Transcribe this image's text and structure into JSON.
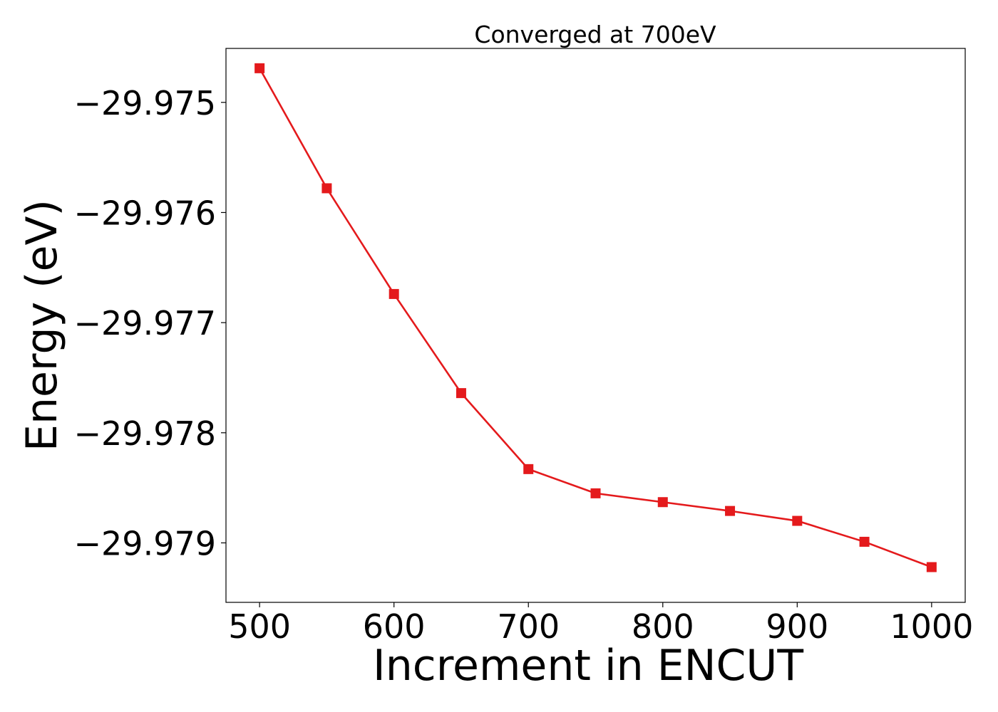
{
  "chart_data": {
    "type": "line",
    "title": "Converged at 700eV",
    "xlabel": "Increment in ENCUT",
    "ylabel": "Energy (eV)",
    "xlim": [
      475,
      1025
    ],
    "ylim": [
      -29.97954,
      -29.97451
    ],
    "x_ticks": [
      500,
      600,
      700,
      800,
      900,
      1000
    ],
    "x_tick_labels": [
      "500",
      "600",
      "700",
      "800",
      "900",
      "1000"
    ],
    "y_ticks": [
      -29.975,
      -29.976,
      -29.977,
      -29.978,
      -29.979
    ],
    "y_tick_labels": [
      "−29.975",
      "−29.976",
      "−29.977",
      "−29.978",
      "−29.979"
    ],
    "grid": false,
    "series": [
      {
        "marker": "square",
        "color": "#e41a1c",
        "x": [
          500,
          550,
          600,
          650,
          700,
          750,
          800,
          850,
          900,
          950,
          1000
        ],
        "y": [
          -29.97469,
          -29.97578,
          -29.97674,
          -29.97764,
          -29.97833,
          -29.97855,
          -29.97863,
          -29.97871,
          -29.9788,
          -29.97899,
          -29.97922
        ]
      }
    ]
  }
}
